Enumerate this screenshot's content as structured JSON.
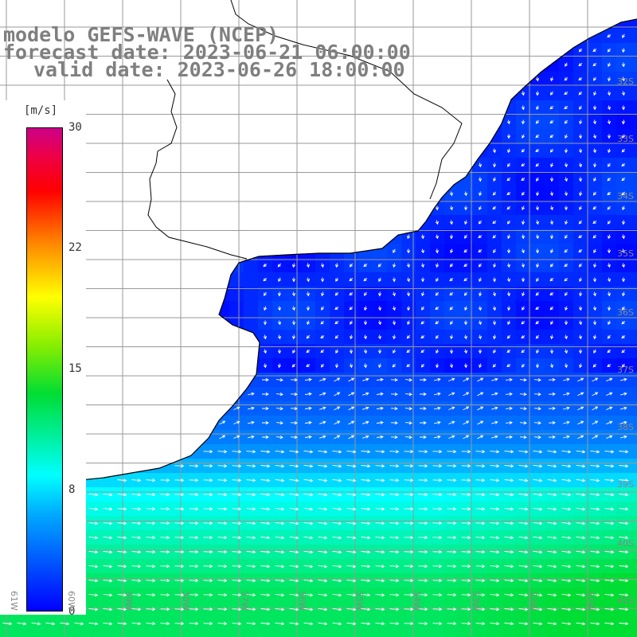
{
  "titles": {
    "line1": "modelo GEFS-WAVE (NCEP)",
    "line2": "forecast date: 2023-06-21 06:00:00",
    "line3": "valid date: 2023-06-26 18:00:00"
  },
  "colorbar": {
    "unit": "[m/s]",
    "ticks": [
      "30",
      "22",
      "15",
      "8",
      "0"
    ],
    "colors": [
      "#0000ff",
      "#00aaff",
      "#00ffff",
      "#00dd33",
      "#88ee00",
      "#ffff00",
      "#ff8800",
      "#ff0000",
      "#cc0088"
    ]
  },
  "map": {
    "lat_labels": [
      "32S",
      "33S",
      "34S",
      "35S",
      "36S",
      "37S",
      "38S",
      "39S",
      "40S",
      "41S"
    ],
    "lon_labels": [
      "61W",
      "60W",
      "59W",
      "58W",
      "57W",
      "56W",
      "55W",
      "54W",
      "53W",
      "52W",
      "51W"
    ],
    "land_color": "#ffffff",
    "grid_color": "#999999",
    "coast_color": "#000000",
    "arrow_color": "#ffffff"
  }
}
